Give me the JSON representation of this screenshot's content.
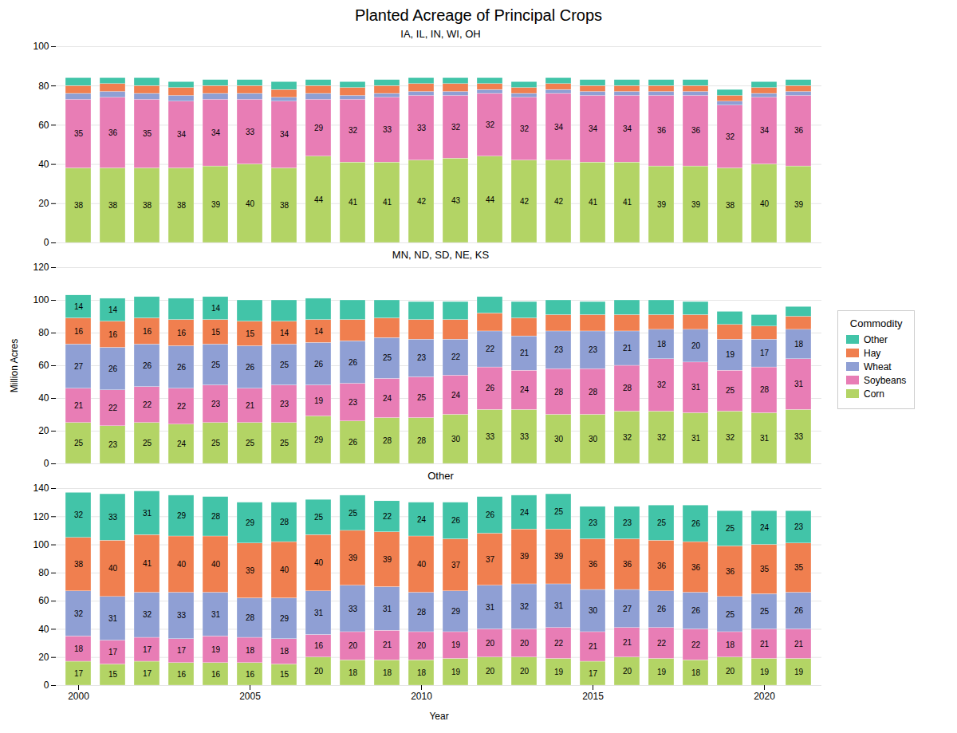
{
  "chart_data": [
    {
      "type": "bar",
      "stacked": true,
      "title": "Planted Acreage of Principal Crops",
      "subtitle": "IA, IL, IN, WI, OH",
      "categories": [
        2000,
        2001,
        2002,
        2003,
        2004,
        2005,
        2006,
        2007,
        2008,
        2009,
        2010,
        2011,
        2012,
        2013,
        2014,
        2015,
        2016,
        2017,
        2018,
        2019,
        2020,
        2021
      ],
      "xticks": [
        2000,
        2005,
        2010,
        2015,
        2020
      ],
      "ylim": [
        0,
        100
      ],
      "yticks": [
        0,
        20,
        40,
        60,
        80,
        100
      ],
      "grid": true,
      "tick_labels": "y",
      "data_labels": true,
      "series": [
        {
          "name": "Corn",
          "color": "#b3d465",
          "values": [
            38,
            38,
            38,
            38,
            39,
            40,
            38,
            44,
            41,
            41,
            42,
            43,
            44,
            42,
            42,
            41,
            41,
            39,
            39,
            38,
            40,
            39
          ]
        },
        {
          "name": "Soybeans",
          "color": "#e87db5",
          "values": [
            35,
            36,
            35,
            34,
            34,
            33,
            34,
            29,
            32,
            33,
            33,
            32,
            32,
            32,
            34,
            34,
            34,
            36,
            36,
            32,
            34,
            36
          ]
        },
        {
          "name": "Wheat",
          "color": "#8f9fd4",
          "values": [
            3,
            3,
            3,
            3,
            3,
            3,
            2,
            3,
            2,
            2,
            2,
            2,
            2,
            2,
            2,
            2,
            2,
            2,
            2,
            2,
            2,
            2
          ],
          "data_labels": false
        },
        {
          "name": "Hay",
          "color": "#f07f4f",
          "values": [
            4,
            4,
            4,
            4,
            4,
            4,
            4,
            4,
            4,
            4,
            4,
            4,
            3,
            3,
            3,
            3,
            3,
            3,
            3,
            3,
            3,
            3
          ],
          "data_labels": false
        },
        {
          "name": "Other",
          "color": "#42c4a8",
          "values": [
            4,
            3,
            4,
            3,
            3,
            3,
            4,
            3,
            3,
            3,
            3,
            3,
            3,
            3,
            3,
            3,
            3,
            3,
            3,
            3,
            3,
            3
          ],
          "data_labels": false
        }
      ]
    },
    {
      "type": "bar",
      "stacked": true,
      "subtitle": "MN, ND, SD, NE, KS",
      "ylabel": "Million Acres",
      "categories": [
        2000,
        2001,
        2002,
        2003,
        2004,
        2005,
        2006,
        2007,
        2008,
        2009,
        2010,
        2011,
        2012,
        2013,
        2014,
        2015,
        2016,
        2017,
        2018,
        2019,
        2020,
        2021
      ],
      "xticks": [
        2000,
        2005,
        2010,
        2015,
        2020
      ],
      "ylim": [
        0,
        120
      ],
      "yticks": [
        0,
        20,
        40,
        60,
        80,
        100,
        120
      ],
      "grid": true,
      "tick_labels": "y",
      "data_labels": true,
      "legend": "right",
      "legend_title": "Commodity",
      "series": [
        {
          "name": "Corn",
          "color": "#b3d465",
          "values": [
            25,
            23,
            25,
            24,
            25,
            25,
            25,
            29,
            26,
            28,
            28,
            30,
            33,
            33,
            30,
            30,
            32,
            32,
            31,
            32,
            31,
            33
          ]
        },
        {
          "name": "Soybeans",
          "color": "#e87db5",
          "values": [
            21,
            22,
            22,
            22,
            23,
            21,
            23,
            19,
            23,
            24,
            25,
            24,
            26,
            24,
            28,
            28,
            28,
            32,
            31,
            25,
            28,
            31
          ]
        },
        {
          "name": "Wheat",
          "color": "#8f9fd4",
          "values": [
            27,
            26,
            26,
            26,
            25,
            26,
            25,
            26,
            26,
            25,
            23,
            22,
            22,
            21,
            23,
            23,
            21,
            18,
            20,
            19,
            17,
            18
          ]
        },
        {
          "name": "Hay",
          "color": "#f07f4f",
          "values": [
            16,
            16,
            16,
            16,
            15,
            15,
            14,
            14,
            13,
            12,
            12,
            12,
            11,
            11,
            10,
            10,
            10,
            9,
            9,
            9,
            8,
            8
          ],
          "value_labels": [
            "16",
            "16",
            "16",
            "16",
            "15",
            "15",
            "14",
            "14",
            null,
            null,
            null,
            null,
            null,
            null,
            null,
            null,
            null,
            null,
            null,
            null,
            null,
            null
          ]
        },
        {
          "name": "Other",
          "color": "#42c4a8",
          "values": [
            14,
            14,
            13,
            13,
            14,
            13,
            13,
            13,
            12,
            11,
            11,
            11,
            10,
            10,
            9,
            8,
            9,
            9,
            8,
            8,
            7,
            6
          ],
          "value_labels": [
            "14",
            "14",
            null,
            null,
            "14",
            null,
            null,
            null,
            null,
            null,
            null,
            null,
            null,
            null,
            null,
            null,
            null,
            null,
            null,
            null,
            null,
            null
          ]
        }
      ]
    },
    {
      "type": "bar",
      "stacked": true,
      "subtitle": "Other",
      "xlabel": "Year",
      "categories": [
        2000,
        2001,
        2002,
        2003,
        2004,
        2005,
        2006,
        2007,
        2008,
        2009,
        2010,
        2011,
        2012,
        2013,
        2014,
        2015,
        2016,
        2017,
        2018,
        2019,
        2020,
        2021
      ],
      "xticks": [
        2000,
        2005,
        2010,
        2015,
        2020
      ],
      "ylim": [
        0,
        140
      ],
      "yticks": [
        0,
        20,
        40,
        60,
        80,
        100,
        120,
        140
      ],
      "grid": true,
      "data_labels": true,
      "series": [
        {
          "name": "Corn",
          "color": "#b3d465",
          "values": [
            17,
            15,
            17,
            16,
            16,
            16,
            15,
            20,
            18,
            18,
            18,
            19,
            20,
            20,
            19,
            17,
            20,
            19,
            18,
            20,
            19,
            19
          ]
        },
        {
          "name": "Soybeans",
          "color": "#e87db5",
          "values": [
            18,
            17,
            17,
            17,
            19,
            18,
            18,
            16,
            20,
            21,
            20,
            19,
            20,
            20,
            22,
            21,
            21,
            22,
            22,
            18,
            21,
            21
          ]
        },
        {
          "name": "Wheat",
          "color": "#8f9fd4",
          "values": [
            32,
            31,
            32,
            33,
            31,
            28,
            29,
            31,
            33,
            31,
            28,
            29,
            31,
            32,
            31,
            30,
            27,
            26,
            26,
            25,
            25,
            26
          ]
        },
        {
          "name": "Hay",
          "color": "#f07f4f",
          "values": [
            38,
            40,
            41,
            40,
            40,
            39,
            40,
            40,
            39,
            39,
            40,
            37,
            37,
            39,
            39,
            36,
            36,
            36,
            36,
            36,
            35,
            35
          ]
        },
        {
          "name": "Other",
          "color": "#42c4a8",
          "values": [
            32,
            33,
            31,
            29,
            28,
            29,
            28,
            25,
            25,
            22,
            24,
            26,
            26,
            24,
            25,
            23,
            23,
            25,
            26,
            25,
            24,
            23
          ]
        }
      ]
    }
  ]
}
